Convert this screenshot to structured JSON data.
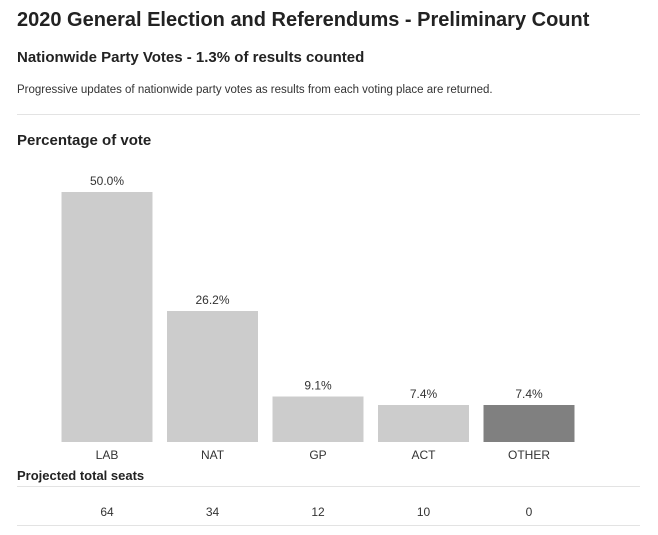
{
  "header": {
    "title": "2020 General Election and Referendums - Preliminary Count",
    "subtitle": "Nationwide Party Votes - 1.3% of results counted",
    "description": "Progressive updates of nationwide party votes as results from each voting place are returned."
  },
  "chart_data": {
    "type": "bar",
    "title": "Percentage of vote",
    "categories": [
      "LAB",
      "NAT",
      "GP",
      "ACT",
      "OTHER"
    ],
    "values": [
      50.0,
      26.2,
      9.1,
      7.4,
      7.4
    ],
    "value_labels": [
      "50.0%",
      "26.2%",
      "9.1%",
      "7.4%",
      "7.4%"
    ],
    "unit": "%",
    "ylim": [
      0,
      50
    ],
    "grid": false,
    "colors": [
      "#cccccc",
      "#cccccc",
      "#cccccc",
      "#cccccc",
      "#808080"
    ]
  },
  "seats": {
    "title": "Projected total seats",
    "values": [
      "64",
      "34",
      "12",
      "10",
      "0"
    ]
  }
}
